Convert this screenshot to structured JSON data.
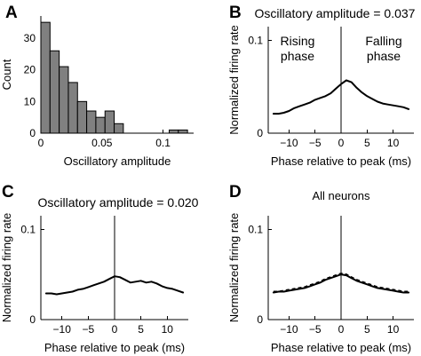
{
  "chart_data": [
    {
      "panel": "A",
      "type": "bar",
      "xlabel": "Oscillatory amplitude",
      "ylabel": "Count",
      "xlim": [
        0,
        0.125
      ],
      "ylim": [
        0,
        37
      ],
      "xticks": [
        0,
        0.05,
        0.1
      ],
      "xtick_labels": [
        "0",
        "0.05",
        "0.1"
      ],
      "yticks": [
        0,
        10,
        20,
        30
      ],
      "ytick_labels": [
        "0",
        "10",
        "20",
        "30"
      ],
      "bin_width": 0.0075,
      "bins": [
        {
          "x0": 0.0,
          "value": 35
        },
        {
          "x0": 0.0075,
          "value": 26
        },
        {
          "x0": 0.015,
          "value": 21
        },
        {
          "x0": 0.0225,
          "value": 16
        },
        {
          "x0": 0.03,
          "value": 10
        },
        {
          "x0": 0.0375,
          "value": 7
        },
        {
          "x0": 0.045,
          "value": 5
        },
        {
          "x0": 0.0525,
          "value": 7
        },
        {
          "x0": 0.06,
          "value": 3
        },
        {
          "x0": 0.0675,
          "value": 0
        },
        {
          "x0": 0.075,
          "value": 0
        },
        {
          "x0": 0.0825,
          "value": 0
        },
        {
          "x0": 0.09,
          "value": 0
        },
        {
          "x0": 0.0975,
          "value": 0
        },
        {
          "x0": 0.105,
          "value": 1
        },
        {
          "x0": 0.1125,
          "value": 1
        }
      ]
    },
    {
      "panel": "B",
      "type": "line",
      "title": "Oscillatory amplitude = 0.037",
      "xlabel": "Phase relative to peak (ms)",
      "ylabel": "Normalized firing rate",
      "xlim": [
        -14,
        14
      ],
      "ylim": [
        0,
        0.115
      ],
      "xticks": [
        -10,
        -5,
        0,
        5,
        10
      ],
      "xtick_labels": [
        "−10",
        "−5",
        "0",
        "5",
        "10"
      ],
      "yticks": [
        0,
        0.1
      ],
      "ytick_labels": [
        "0",
        "0.1"
      ],
      "annotations": [
        "Rising",
        "phase",
        "Falling",
        "phase"
      ],
      "series": [
        {
          "style": "solid",
          "x": [
            -13,
            -12,
            -11,
            -10,
            -9,
            -8,
            -7,
            -6,
            -5,
            -4,
            -3,
            -2,
            -1,
            0,
            1,
            2,
            3,
            4,
            5,
            6,
            7,
            8,
            9,
            10,
            11,
            12,
            13
          ],
          "y": [
            0.021,
            0.021,
            0.022,
            0.024,
            0.027,
            0.029,
            0.031,
            0.033,
            0.036,
            0.038,
            0.04,
            0.043,
            0.048,
            0.053,
            0.057,
            0.055,
            0.049,
            0.044,
            0.04,
            0.037,
            0.034,
            0.032,
            0.031,
            0.03,
            0.029,
            0.028,
            0.026
          ]
        }
      ]
    },
    {
      "panel": "C",
      "type": "line",
      "title": "Oscillatory amplitude = 0.020",
      "xlabel": "Phase relative to peak (ms)",
      "ylabel": "Normalized firing rate",
      "xlim": [
        -14,
        14
      ],
      "ylim": [
        0,
        0.115
      ],
      "xticks": [
        -10,
        -5,
        0,
        5,
        10
      ],
      "xtick_labels": [
        "−10",
        "−5",
        "0",
        "5",
        "10"
      ],
      "yticks": [
        0,
        0.1
      ],
      "ytick_labels": [
        "0",
        "0.1"
      ],
      "series": [
        {
          "style": "solid",
          "x": [
            -13,
            -12,
            -11,
            -10,
            -9,
            -8,
            -7,
            -6,
            -5,
            -4,
            -3,
            -2,
            -1,
            0,
            1,
            2,
            3,
            4,
            5,
            6,
            7,
            8,
            9,
            10,
            11,
            12,
            13
          ],
          "y": [
            0.029,
            0.029,
            0.028,
            0.029,
            0.03,
            0.031,
            0.033,
            0.034,
            0.036,
            0.038,
            0.04,
            0.042,
            0.045,
            0.048,
            0.047,
            0.044,
            0.041,
            0.042,
            0.043,
            0.041,
            0.042,
            0.04,
            0.037,
            0.035,
            0.034,
            0.032,
            0.03
          ]
        }
      ]
    },
    {
      "panel": "D",
      "type": "line",
      "title": "All neurons",
      "xlabel": "Phase relative to peak (ms)",
      "ylabel": "Normalized firing rate",
      "xlim": [
        -14,
        14
      ],
      "ylim": [
        0,
        0.115
      ],
      "xticks": [
        -10,
        -5,
        0,
        5,
        10
      ],
      "xtick_labels": [
        "−10",
        "−5",
        "0",
        "5",
        "10"
      ],
      "yticks": [
        0,
        0.1
      ],
      "ytick_labels": [
        "0",
        "0.1"
      ],
      "series": [
        {
          "style": "solid",
          "x": [
            -13,
            -12,
            -11,
            -10,
            -9,
            -8,
            -7,
            -6,
            -5,
            -4,
            -3,
            -2,
            -1,
            0,
            1,
            2,
            3,
            4,
            5,
            6,
            7,
            8,
            9,
            10,
            11,
            12,
            13
          ],
          "y": [
            0.03,
            0.031,
            0.031,
            0.032,
            0.033,
            0.034,
            0.035,
            0.037,
            0.039,
            0.041,
            0.044,
            0.046,
            0.048,
            0.05,
            0.049,
            0.046,
            0.043,
            0.041,
            0.039,
            0.037,
            0.035,
            0.034,
            0.033,
            0.032,
            0.031,
            0.03,
            0.03
          ]
        },
        {
          "style": "dashed",
          "x": [
            -13,
            -12,
            -11,
            -10,
            -9,
            -8,
            -7,
            -6,
            -5,
            -4,
            -3,
            -2,
            -1,
            0,
            1,
            2,
            3,
            4,
            5,
            6,
            7,
            8,
            9,
            10,
            11,
            12,
            13
          ],
          "y": [
            0.031,
            0.031,
            0.032,
            0.033,
            0.034,
            0.035,
            0.036,
            0.038,
            0.04,
            0.042,
            0.045,
            0.047,
            0.049,
            0.051,
            0.05,
            0.047,
            0.044,
            0.042,
            0.04,
            0.038,
            0.036,
            0.035,
            0.034,
            0.033,
            0.032,
            0.031,
            0.031
          ]
        }
      ]
    }
  ]
}
